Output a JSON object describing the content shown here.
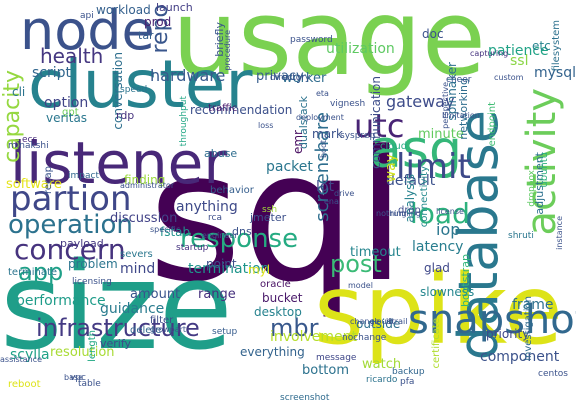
{
  "words": [
    {
      "text": "usage",
      "color": "#7ad151"
    },
    {
      "text": "sql",
      "color": "#440154"
    },
    {
      "text": "size",
      "color": "#1f9e89"
    },
    {
      "text": "spike",
      "color": "#dde318"
    },
    {
      "text": "cluster",
      "color": "#26828e"
    },
    {
      "text": "node",
      "color": "#3b528b"
    },
    {
      "text": "listener",
      "color": "#482878"
    },
    {
      "text": "database",
      "color": "#2a788e"
    },
    {
      "text": "activity",
      "color": "#6ccd5a"
    },
    {
      "text": "asg",
      "color": "#35b779"
    },
    {
      "text": "snapshot",
      "color": "#31688e"
    },
    {
      "text": "utc",
      "color": "#482475"
    },
    {
      "text": "limit",
      "color": "#3e4989"
    },
    {
      "text": "partion",
      "color": "#3f4788"
    },
    {
      "text": "concern",
      "color": "#46337e"
    },
    {
      "text": "operation",
      "color": "#2c728e"
    },
    {
      "text": "response",
      "color": "#25ab82"
    },
    {
      "text": "infrastructure",
      "color": "#443a83"
    },
    {
      "text": "mbr",
      "color": "#38588c"
    },
    {
      "text": "load",
      "color": "#2db27d"
    },
    {
      "text": "post",
      "color": "#3aba76"
    },
    {
      "text": "app",
      "color": "#1fa088"
    },
    {
      "text": "capacity",
      "color": "#95d840"
    },
    {
      "text": "repo",
      "color": "#39568c"
    },
    {
      "text": "health",
      "color": "#453781"
    },
    {
      "text": "screenshare",
      "color": "#2e6e8e"
    },
    {
      "text": "gateway",
      "color": "#3e4c8a"
    },
    {
      "text": "hardware",
      "color": "#38598c"
    },
    {
      "text": "script",
      "color": "#31668e"
    },
    {
      "text": "option",
      "color": "#414487"
    },
    {
      "text": "ssl",
      "color": "#8bd646"
    },
    {
      "text": "iop",
      "color": "#2a768e"
    },
    {
      "text": "default",
      "color": "#3b518b"
    },
    {
      "text": "latency",
      "color": "#287d8e"
    },
    {
      "text": "timeout",
      "color": "#25858e"
    },
    {
      "text": "minute",
      "color": "#63cb5f"
    },
    {
      "text": "mysql",
      "color": "#33638d"
    },
    {
      "text": "worker",
      "color": "#2f6c8e"
    },
    {
      "text": "privacy",
      "color": "#365d8d"
    },
    {
      "text": "patience",
      "color": "#20a386"
    },
    {
      "text": "utilization",
      "color": "#5ec962"
    },
    {
      "text": "spinnaker",
      "color": "#2d708e"
    },
    {
      "text": "communication",
      "color": "#3d4d8a"
    },
    {
      "text": "conversation",
      "color": "#2e6f8e"
    },
    {
      "text": "recommendation",
      "color": "#3c508b"
    },
    {
      "text": "workload",
      "color": "#34608d"
    },
    {
      "text": "launch",
      "color": "#433e85"
    },
    {
      "text": "prod",
      "color": "#481f70"
    },
    {
      "text": "tar",
      "color": "#355f8d"
    },
    {
      "text": "briefly",
      "color": "#3a548c"
    },
    {
      "text": "doc",
      "color": "#3b528b"
    },
    {
      "text": "etc",
      "color": "#25838e"
    },
    {
      "text": "filesystem",
      "color": "#2d718e"
    },
    {
      "text": "cli",
      "color": "#2b748e"
    },
    {
      "text": "gpt",
      "color": "#6ece58"
    },
    {
      "text": "veritas",
      "color": "#2a778e"
    },
    {
      "text": "rdp",
      "color": "#46327e"
    },
    {
      "text": "traffic",
      "color": "#481b6d"
    },
    {
      "text": "throughput",
      "color": "#22a785"
    },
    {
      "text": "dualstack",
      "color": "#2c738e"
    },
    {
      "text": "emr",
      "color": "#470d60"
    },
    {
      "text": "mark",
      "color": "#3b528b"
    },
    {
      "text": "packet",
      "color": "#2a768e"
    },
    {
      "text": "lot",
      "color": "#404688"
    },
    {
      "text": "way",
      "color": "#d0e11c"
    },
    {
      "text": "analysis",
      "color": "#26828e"
    },
    {
      "text": "connectivity",
      "color": "#238a8d"
    },
    {
      "text": "networking",
      "color": "#2e6d8e"
    },
    {
      "text": "endpoint",
      "color": "#3fbc73"
    },
    {
      "text": "adjustment",
      "color": "#2c718e"
    },
    {
      "text": "ubuntu",
      "color": "#2db27d"
    },
    {
      "text": "finding",
      "color": "#9bd93c"
    },
    {
      "text": "software",
      "color": "#e5e419"
    },
    {
      "text": "anything",
      "color": "#3e4a89"
    },
    {
      "text": "discussion",
      "color": "#414287"
    },
    {
      "text": "performance",
      "color": "#1e9c89"
    },
    {
      "text": "problem",
      "color": "#2b758e"
    },
    {
      "text": "mind",
      "color": "#3f4889"
    },
    {
      "text": "termination",
      "color": "#1f958b"
    },
    {
      "text": "guidance",
      "color": "#297b8e"
    },
    {
      "text": "amount",
      "color": "#3a548c"
    },
    {
      "text": "range",
      "color": "#46307e"
    },
    {
      "text": "verify",
      "color": "#3e4a89"
    },
    {
      "text": "resolution",
      "color": "#a8db34"
    },
    {
      "text": "length",
      "color": "#22a884"
    },
    {
      "text": "scylla",
      "color": "#1fa187"
    },
    {
      "text": "watch",
      "color": "#a2da37"
    },
    {
      "text": "component",
      "color": "#3b528b"
    },
    {
      "text": "bottom",
      "color": "#2c728e"
    },
    {
      "text": "everything",
      "color": "#33638d"
    },
    {
      "text": "involvement",
      "color": "#b5de2b"
    },
    {
      "text": "priority",
      "color": "#3e4989"
    },
    {
      "text": "investigation",
      "color": "#2f6b8e"
    },
    {
      "text": "frame",
      "color": "#2d708e"
    },
    {
      "text": "slowness",
      "color": "#24868e"
    },
    {
      "text": "glad",
      "color": "#3f4889"
    },
    {
      "text": "outside",
      "color": "#2e6f8e"
    },
    {
      "text": "desktop",
      "color": "#26828e"
    },
    {
      "text": "bucket",
      "color": "#481769"
    },
    {
      "text": "point",
      "color": "#3c4f8a"
    },
    {
      "text": "dns",
      "color": "#3b528b"
    },
    {
      "text": "fstab",
      "color": "#20928c"
    },
    {
      "text": "payload",
      "color": "#453882"
    },
    {
      "text": "terminate",
      "color": "#2b758e"
    },
    {
      "text": "reboot",
      "color": "#dde318"
    },
    {
      "text": "table",
      "color": "#3b528b"
    },
    {
      "text": "filter",
      "color": "#3e4c8a"
    },
    {
      "text": "delete",
      "color": "#32658e"
    },
    {
      "text": "severs",
      "color": "#2a778e"
    },
    {
      "text": "ecs",
      "color": "#472d7b"
    },
    {
      "text": "recap",
      "color": "#3a548c"
    },
    {
      "text": "impact",
      "color": "#31678e"
    },
    {
      "text": "abuse",
      "color": "#2e6d8e"
    },
    {
      "text": "behavior",
      "color": "#355e8d"
    },
    {
      "text": "jmeter",
      "color": "#3c4f8a"
    },
    {
      "text": "drop",
      "color": "#3e4c8a"
    },
    {
      "text": "ssh",
      "color": "#a0da39"
    },
    {
      "text": "rca",
      "color": "#3d4e8a"
    },
    {
      "text": "myl",
      "color": "#e2e418"
    },
    {
      "text": "oracle",
      "color": "#471063"
    },
    {
      "text": "setup",
      "color": "#365c8d"
    },
    {
      "text": "cloud",
      "color": "#25ab82"
    },
    {
      "text": "bootstrap",
      "color": "#31b57b"
    },
    {
      "text": "certificate",
      "color": "#b0dd2f"
    },
    {
      "text": "message",
      "color": "#3f4788"
    },
    {
      "text": "backup",
      "color": "#31668e"
    },
    {
      "text": "ricardo",
      "color": "#2c738e"
    },
    {
      "text": "centos",
      "color": "#3b528b"
    },
    {
      "text": "nochange",
      "color": "#3b528b"
    },
    {
      "text": "screenshot",
      "color": "#2f6b8e"
    },
    {
      "text": "startup",
      "color": "#46337f"
    },
    {
      "text": "licensing",
      "color": "#3b528b"
    },
    {
      "text": "api",
      "color": "#3b528b"
    },
    {
      "text": "speed",
      "color": "#2b748e"
    },
    {
      "text": "minakshi",
      "color": "#3b528b"
    },
    {
      "text": "administrator",
      "color": "#3b528b"
    },
    {
      "text": "engineer",
      "color": "#3b528b"
    },
    {
      "text": "shruti",
      "color": "#2a768e"
    },
    {
      "text": "instance",
      "color": "#3b528b"
    },
    {
      "text": "dropbox",
      "color": "#5ec962"
    },
    {
      "text": "password",
      "color": "#3b528b"
    },
    {
      "text": "directory",
      "color": "#3b528b"
    },
    {
      "text": "perspective",
      "color": "#3b528b"
    },
    {
      "text": "capturing",
      "color": "#46337f"
    },
    {
      "text": "cheer",
      "color": "#3b528b"
    },
    {
      "text": "custom",
      "color": "#3b528b"
    },
    {
      "text": "deployment",
      "color": "#3b528b"
    },
    {
      "text": "vignesh",
      "color": "#3b528b"
    },
    {
      "text": "sysprep",
      "color": "#3b528b"
    },
    {
      "text": "loss",
      "color": "#3b528b"
    },
    {
      "text": "nothing",
      "color": "#3b528b"
    },
    {
      "text": "license",
      "color": "#3b528b"
    },
    {
      "text": "running",
      "color": "#3b528b"
    },
    {
      "text": "specific",
      "color": "#3b528b"
    },
    {
      "text": "vpc",
      "color": "#3b528b"
    },
    {
      "text": "base",
      "color": "#3b528b"
    },
    {
      "text": "pfa",
      "color": "#3b528b"
    },
    {
      "text": "eta",
      "color": "#3b528b"
    },
    {
      "text": "boot",
      "color": "#3b528b"
    },
    {
      "text": "limitation",
      "color": "#3b528b"
    },
    {
      "text": "assistance",
      "color": "#3b528b"
    },
    {
      "text": "growpart",
      "color": "#3b528b"
    },
    {
      "text": "lb",
      "color": "#3b528b"
    },
    {
      "text": "drive",
      "color": "#3b528b"
    },
    {
      "text": "ena",
      "color": "#3b528b"
    },
    {
      "text": "model",
      "color": "#3b528b"
    },
    {
      "text": "change",
      "color": "#3b528b"
    },
    {
      "text": "cloudtrail",
      "color": "#3b528b"
    },
    {
      "text": "procedure",
      "color": "#3b528b"
    }
  ]
}
